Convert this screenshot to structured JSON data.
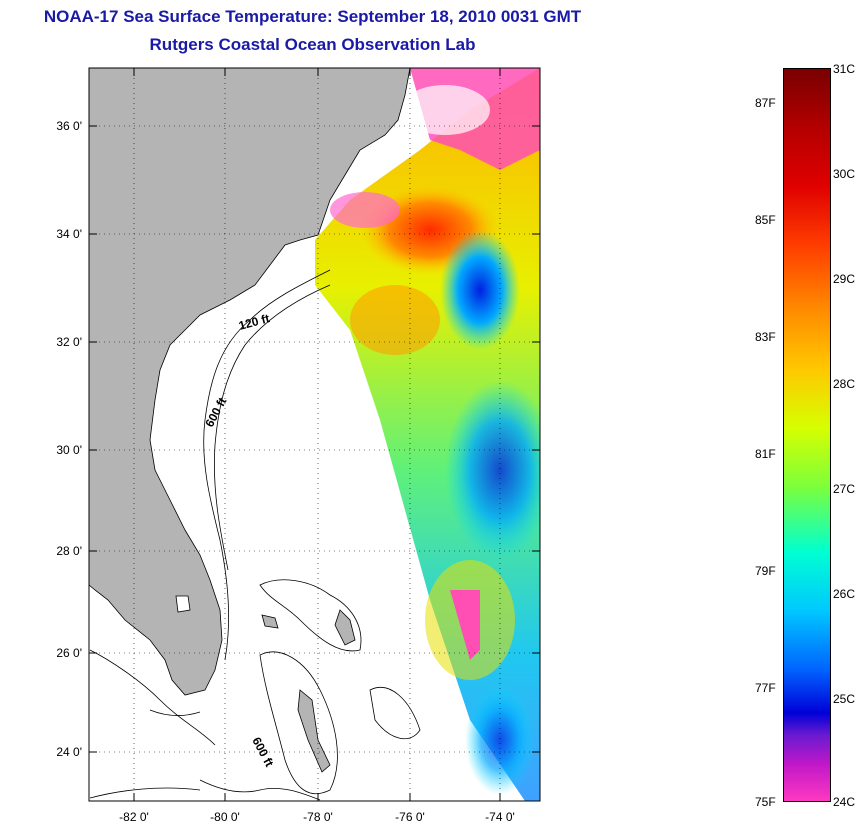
{
  "title": {
    "line1": "NOAA-17 Sea Surface Temperature:  September 18, 2010 0031 GMT",
    "line2": "Rutgers Coastal Ocean Observation Lab"
  },
  "map": {
    "lat_labels": [
      "36 0'",
      "34 0'",
      "32 0'",
      "30 0'",
      "28 0'",
      "26 0'",
      "24 0'"
    ],
    "lon_labels": [
      "-82 0'",
      "-80 0'",
      "-78 0'",
      "-76 0'",
      "-74 0'"
    ],
    "contour_labels": [
      "120 ft",
      "600 ft",
      "600 ft"
    ],
    "land_color": "#b4b4b4",
    "no_data_color": "#ffffff",
    "cloud_color": "#ff4fb4"
  },
  "colorbar": {
    "celsius": [
      "31C",
      "30C",
      "29C",
      "28C",
      "27C",
      "26C",
      "25C",
      "24C"
    ],
    "fahrenheit": [
      "87F",
      "85F",
      "83F",
      "81F",
      "79F",
      "77F",
      "75F"
    ]
  }
}
